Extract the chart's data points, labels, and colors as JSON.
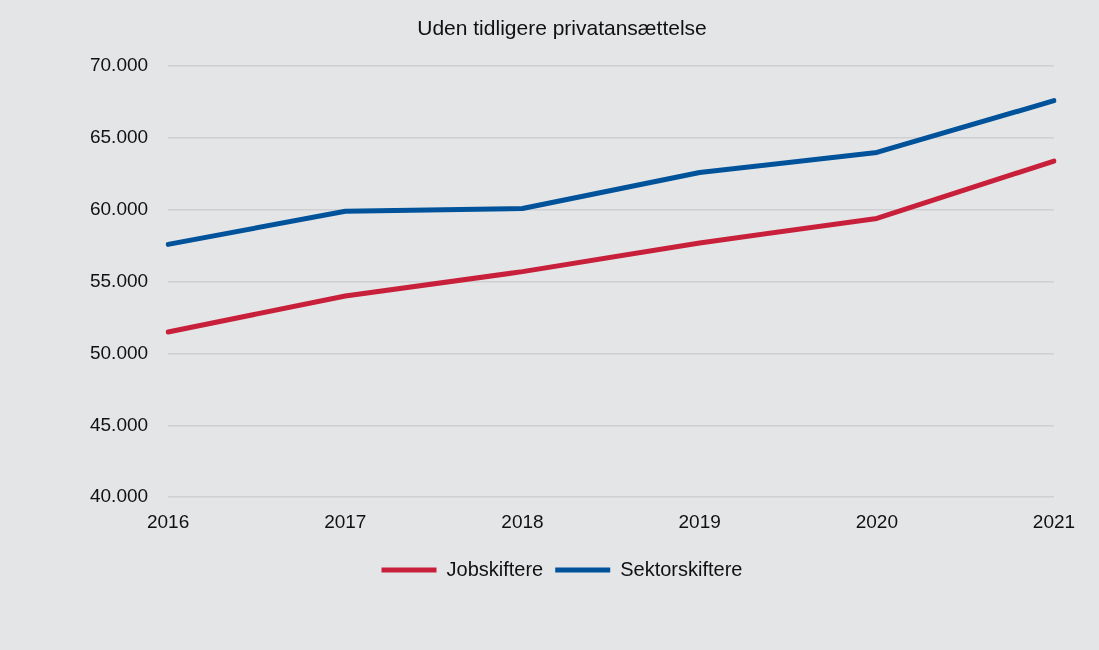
{
  "chart_data": {
    "type": "line",
    "title": "Uden tidligere privatansættelse",
    "categories": [
      "2016",
      "2017",
      "2018",
      "2019",
      "2020",
      "2021"
    ],
    "series": [
      {
        "name": "Jobskiftere",
        "color": "#c8203a",
        "values": [
          51500,
          54000,
          55700,
          57700,
          59400,
          63400
        ]
      },
      {
        "name": "Sektorskiftere",
        "color": "#00539b",
        "values": [
          57600,
          59900,
          60100,
          62600,
          64000,
          67600
        ]
      }
    ],
    "ylim": [
      40000,
      70000
    ],
    "yticks": [
      {
        "value": 40000,
        "label": "40.000"
      },
      {
        "value": 45000,
        "label": "45.000"
      },
      {
        "value": 50000,
        "label": "50.000"
      },
      {
        "value": 55000,
        "label": "55.000"
      },
      {
        "value": 60000,
        "label": "60.000"
      },
      {
        "value": 65000,
        "label": "65.000"
      },
      {
        "value": 70000,
        "label": "70.000"
      }
    ],
    "grid": "y",
    "legend": "bottom",
    "marker": "none",
    "line_style": "solid"
  }
}
